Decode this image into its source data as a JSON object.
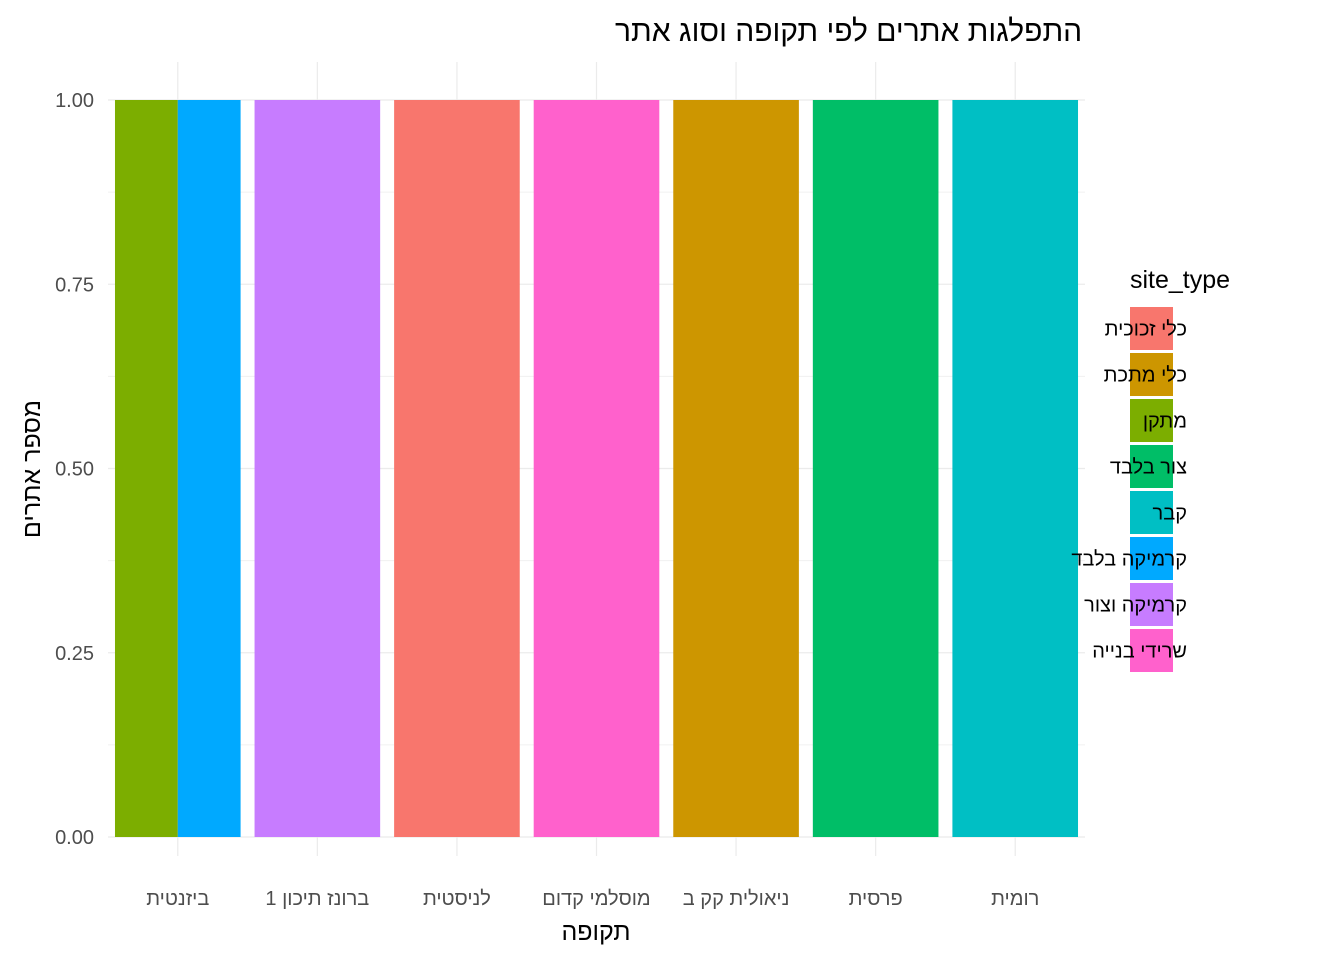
{
  "chart_data": {
    "type": "bar",
    "title": "התפלגות אתרים לפי תקופה וסוג אתר",
    "xlabel": "תקופה",
    "ylabel": "מספר אתרים",
    "ylim": [
      0,
      1.05
    ],
    "yticks": [
      "0.00",
      "0.25",
      "0.50",
      "0.75",
      "1.00"
    ],
    "yticks_values": [
      0,
      0.25,
      0.5,
      0.75,
      1.0
    ],
    "grid": true,
    "legend_position": "right",
    "legend_title": "site_type",
    "categories": [
      "ביזנטית",
      "ברונז תיכון 1",
      "לניסטית",
      "מוסלמי קדום",
      "ניאולית קק ב",
      "פרסית",
      "רומית"
    ],
    "legend": [
      {
        "name": "כלי זכוכית",
        "color": "#F8766D"
      },
      {
        "name": "כלי מתכת",
        "color": "#CD9600"
      },
      {
        "name": "מתקן",
        "color": "#7CAE00"
      },
      {
        "name": "צור בלבד",
        "color": "#00BE67"
      },
      {
        "name": "קבר",
        "color": "#00BFC4"
      },
      {
        "name": "קרמיקה בלבד",
        "color": "#00A9FF"
      },
      {
        "name": "קרמיקה וצור",
        "color": "#C77CFF"
      },
      {
        "name": "שרידי בנייה",
        "color": "#FF61CC"
      }
    ],
    "bars": [
      {
        "category": "ביזנטית",
        "site_type": "מתקן",
        "value": 1
      },
      {
        "category": "ביזנטית",
        "site_type": "קרמיקה בלבד",
        "value": 1
      },
      {
        "category": "ברונז תיכון 1",
        "site_type": "קרמיקה וצור",
        "value": 1
      },
      {
        "category": "לניסטית",
        "site_type": "כלי זכוכית",
        "value": 1
      },
      {
        "category": "מוסלמי קדום",
        "site_type": "שרידי בנייה",
        "value": 1
      },
      {
        "category": "ניאולית קק ב",
        "site_type": "כלי מתכת",
        "value": 1
      },
      {
        "category": "פרסית",
        "site_type": "צור בלבד",
        "value": 1
      },
      {
        "category": "רומית",
        "site_type": "קבר",
        "value": 1
      }
    ]
  }
}
